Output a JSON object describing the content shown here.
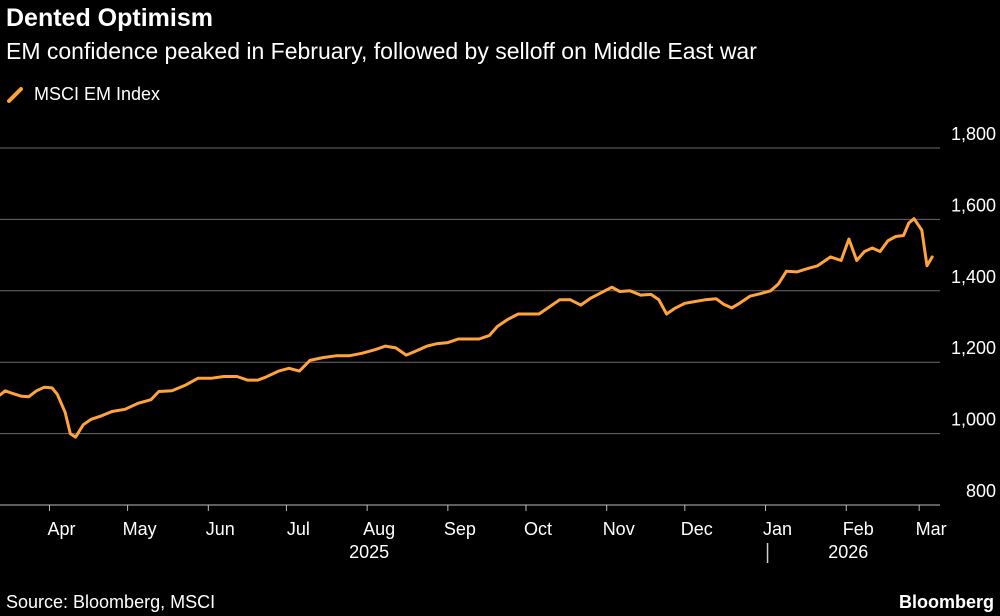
{
  "title": "Dented Optimism",
  "subtitle": "EM confidence peaked in February, followed by selloff on Middle East war",
  "legend": [
    {
      "name": "MSCI EM Index",
      "color": "#ffa33a"
    }
  ],
  "source": "Source: Bloomberg, MSCI",
  "brand": "Bloomberg",
  "chart_data": {
    "type": "line",
    "ylim": [
      800,
      1800
    ],
    "yticks": [
      800,
      1000,
      1200,
      1400,
      1600,
      1800
    ],
    "ytick_labels": [
      "800",
      "1,000",
      "1,200",
      "1,400",
      "1,600",
      "1,800"
    ],
    "xlim": [
      "2025-03-13",
      "2026-03-09"
    ],
    "month_labels": [
      {
        "date": "2025-04-01",
        "label": "Apr"
      },
      {
        "date": "2025-05-01",
        "label": "May"
      },
      {
        "date": "2025-06-01",
        "label": "Jun"
      },
      {
        "date": "2025-07-01",
        "label": "Jul"
      },
      {
        "date": "2025-08-01",
        "label": "Aug"
      },
      {
        "date": "2025-09-01",
        "label": "Sep"
      },
      {
        "date": "2025-10-01",
        "label": "Oct"
      },
      {
        "date": "2025-11-01",
        "label": "Nov"
      },
      {
        "date": "2025-12-01",
        "label": "Dec"
      },
      {
        "date": "2026-01-01",
        "label": "Jan"
      },
      {
        "date": "2026-02-01",
        "label": "Feb"
      },
      {
        "date": "2026-03-01",
        "label": "Mar"
      }
    ],
    "year_labels": [
      {
        "date": "2025-08-01",
        "label": "2025"
      },
      {
        "date": "2026-02-01",
        "label": "2026"
      }
    ],
    "year_divider": "2026-01-01",
    "series": [
      {
        "name": "MSCI EM Index",
        "color": "#ffa33a",
        "points": [
          [
            "2025-03-13",
            1108
          ],
          [
            "2025-03-15",
            1120
          ],
          [
            "2025-03-18",
            1112
          ],
          [
            "2025-03-21",
            1105
          ],
          [
            "2025-03-24",
            1103
          ],
          [
            "2025-03-27",
            1120
          ],
          [
            "2025-03-30",
            1130
          ],
          [
            "2025-04-02",
            1128
          ],
          [
            "2025-04-04",
            1110
          ],
          [
            "2025-04-07",
            1060
          ],
          [
            "2025-04-09",
            1000
          ],
          [
            "2025-04-11",
            990
          ],
          [
            "2025-04-14",
            1025
          ],
          [
            "2025-04-17",
            1040
          ],
          [
            "2025-04-21",
            1050
          ],
          [
            "2025-04-25",
            1062
          ],
          [
            "2025-04-30",
            1068
          ],
          [
            "2025-05-05",
            1085
          ],
          [
            "2025-05-10",
            1095
          ],
          [
            "2025-05-13",
            1118
          ],
          [
            "2025-05-18",
            1120
          ],
          [
            "2025-05-23",
            1135
          ],
          [
            "2025-05-28",
            1155
          ],
          [
            "2025-06-02",
            1155
          ],
          [
            "2025-06-07",
            1160
          ],
          [
            "2025-06-12",
            1160
          ],
          [
            "2025-06-16",
            1150
          ],
          [
            "2025-06-20",
            1150
          ],
          [
            "2025-06-23",
            1158
          ],
          [
            "2025-06-28",
            1175
          ],
          [
            "2025-07-02",
            1183
          ],
          [
            "2025-07-06",
            1175
          ],
          [
            "2025-07-10",
            1205
          ],
          [
            "2025-07-15",
            1213
          ],
          [
            "2025-07-20",
            1218
          ],
          [
            "2025-07-25",
            1218
          ],
          [
            "2025-07-30",
            1225
          ],
          [
            "2025-08-04",
            1235
          ],
          [
            "2025-08-08",
            1245
          ],
          [
            "2025-08-12",
            1240
          ],
          [
            "2025-08-16",
            1220
          ],
          [
            "2025-08-20",
            1232
          ],
          [
            "2025-08-24",
            1245
          ],
          [
            "2025-08-28",
            1252
          ],
          [
            "2025-09-01",
            1255
          ],
          [
            "2025-09-05",
            1265
          ],
          [
            "2025-09-09",
            1265
          ],
          [
            "2025-09-13",
            1265
          ],
          [
            "2025-09-17",
            1275
          ],
          [
            "2025-09-20",
            1300
          ],
          [
            "2025-09-24",
            1320
          ],
          [
            "2025-09-28",
            1335
          ],
          [
            "2025-10-02",
            1335
          ],
          [
            "2025-10-06",
            1335
          ],
          [
            "2025-10-10",
            1355
          ],
          [
            "2025-10-14",
            1375
          ],
          [
            "2025-10-18",
            1375
          ],
          [
            "2025-10-22",
            1360
          ],
          [
            "2025-10-26",
            1380
          ],
          [
            "2025-10-30",
            1395
          ],
          [
            "2025-11-03",
            1410
          ],
          [
            "2025-11-06",
            1398
          ],
          [
            "2025-11-10",
            1400
          ],
          [
            "2025-11-14",
            1388
          ],
          [
            "2025-11-18",
            1390
          ],
          [
            "2025-11-21",
            1375
          ],
          [
            "2025-11-24",
            1335
          ],
          [
            "2025-11-27",
            1350
          ],
          [
            "2025-12-01",
            1365
          ],
          [
            "2025-12-05",
            1370
          ],
          [
            "2025-12-09",
            1375
          ],
          [
            "2025-12-13",
            1378
          ],
          [
            "2025-12-16",
            1362
          ],
          [
            "2025-12-19",
            1352
          ],
          [
            "2025-12-22",
            1365
          ],
          [
            "2025-12-26",
            1385
          ],
          [
            "2025-12-30",
            1392
          ],
          [
            "2026-01-03",
            1400
          ],
          [
            "2026-01-06",
            1420
          ],
          [
            "2026-01-09",
            1455
          ],
          [
            "2026-01-13",
            1453
          ],
          [
            "2026-01-17",
            1462
          ],
          [
            "2026-01-21",
            1470
          ],
          [
            "2026-01-26",
            1495
          ],
          [
            "2026-01-30",
            1485
          ],
          [
            "2026-02-02",
            1545
          ],
          [
            "2026-02-05",
            1485
          ],
          [
            "2026-02-08",
            1510
          ],
          [
            "2026-02-11",
            1520
          ],
          [
            "2026-02-14",
            1510
          ],
          [
            "2026-02-17",
            1540
          ],
          [
            "2026-02-20",
            1552
          ],
          [
            "2026-02-23",
            1555
          ],
          [
            "2026-02-25",
            1590
          ],
          [
            "2026-02-27",
            1602
          ],
          [
            "2026-03-02",
            1570
          ],
          [
            "2026-03-04",
            1470
          ],
          [
            "2026-03-06",
            1495
          ]
        ]
      }
    ]
  }
}
